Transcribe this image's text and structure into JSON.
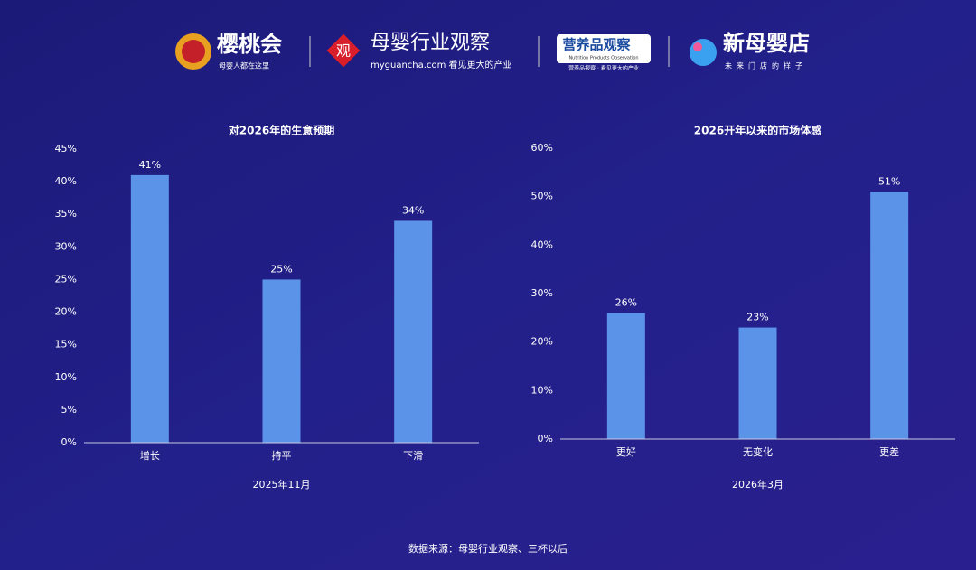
{
  "header": {
    "logo1_name": "樱桃会",
    "logo1_tagline": "母婴人都在这里",
    "logo2_icon": "观",
    "logo2_name": "母婴行业观察",
    "logo2_tagline": "myguancha.com 看见更大的产业",
    "logo3_name": "营养品观察",
    "logo3_sub": "Nutrition Products Observation",
    "logo3_tagline": "营养品报察 · 看见更大的产业",
    "logo4_name": "新母婴店",
    "logo4_tagline": "未来门店的样子"
  },
  "chart_data": [
    {
      "type": "bar",
      "title": "对2026年的生意预期",
      "x_label": "2025年11月",
      "categories": [
        "增长",
        "持平",
        "下滑"
      ],
      "values": [
        41,
        25,
        34
      ],
      "value_labels": [
        "41%",
        "25%",
        "34%"
      ],
      "color": "#5b93e8",
      "ylim": [
        0,
        45
      ],
      "yticks": [
        {
          "value": 0,
          "label": "0%"
        },
        {
          "value": 5,
          "label": "5%"
        },
        {
          "value": 10,
          "label": "10%"
        },
        {
          "value": 15,
          "label": "15%"
        },
        {
          "value": 20,
          "label": "20%"
        },
        {
          "value": 25,
          "label": "25%"
        },
        {
          "value": 30,
          "label": "30%"
        },
        {
          "value": 35,
          "label": "35%"
        },
        {
          "value": 40,
          "label": "40%"
        },
        {
          "value": 45,
          "label": "45%"
        }
      ],
      "grid": false
    },
    {
      "type": "bar",
      "title": "2026开年以来的市场体感",
      "x_label": "2026年3月",
      "categories": [
        "更好",
        "无变化",
        "更差"
      ],
      "values": [
        26,
        23,
        51
      ],
      "value_labels": [
        "26%",
        "23%",
        "51%"
      ],
      "color": "#5b93e8",
      "ylim": [
        0,
        60
      ],
      "yticks": [
        {
          "value": 0,
          "label": "0%"
        },
        {
          "value": 10,
          "label": "10%"
        },
        {
          "value": 20,
          "label": "20%"
        },
        {
          "value": 30,
          "label": "30%"
        },
        {
          "value": 40,
          "label": "40%"
        },
        {
          "value": 50,
          "label": "50%"
        },
        {
          "value": 60,
          "label": "60%"
        }
      ],
      "grid": false
    }
  ],
  "footer": {
    "source": "数据来源：母婴行业观察、三杯以后"
  }
}
